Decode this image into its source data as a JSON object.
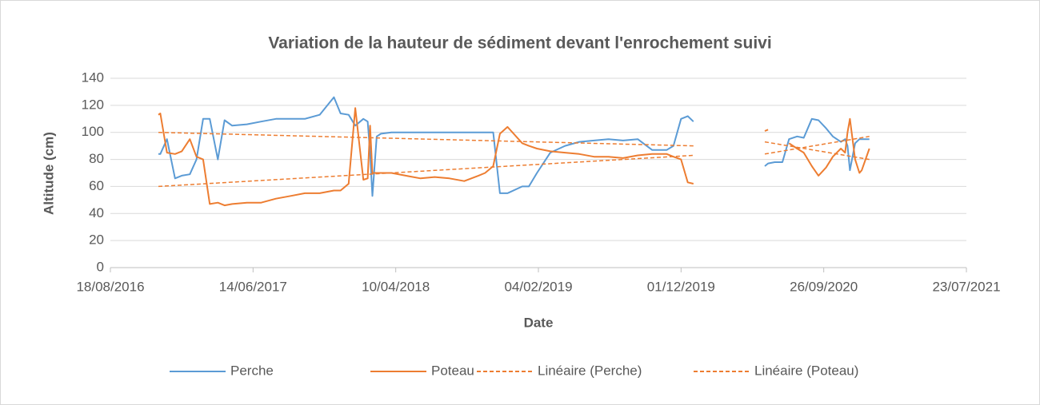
{
  "chart_data": {
    "type": "line",
    "title": "Variation de la hauteur de sédiment devant l'enrochement suivi",
    "x_label": "Date",
    "y_label": "Altitude (cm)",
    "xlim": [
      "2016-08-18",
      "2021-07-23"
    ],
    "xticks": [
      {
        "value": "2016-08-18",
        "label": "18/08/2016"
      },
      {
        "value": "2017-06-14",
        "label": "14/06/2017"
      },
      {
        "value": "2018-04-10",
        "label": "10/04/2018"
      },
      {
        "value": "2019-02-04",
        "label": "04/02/2019"
      },
      {
        "value": "2019-12-01",
        "label": "01/12/2019"
      },
      {
        "value": "2020-09-26",
        "label": "26/09/2020"
      },
      {
        "value": "2021-07-23",
        "label": "23/07/2021"
      }
    ],
    "ylim": [
      0,
      140
    ],
    "yticks": [
      0,
      20,
      40,
      60,
      80,
      100,
      120,
      140
    ],
    "grid": true,
    "legend": "bottom",
    "series": [
      {
        "name": "Perche",
        "color": "#5b9bd5",
        "dash": false,
        "x": [
          "2016-11-27",
          "2016-12-01",
          "2016-12-15",
          "2017-01-01",
          "2017-01-15",
          "2017-02-01",
          "2017-02-15",
          "2017-03-01",
          "2017-03-15",
          "2017-04-01",
          "2017-04-15",
          "2017-05-01",
          "2017-06-01",
          "2017-07-01",
          "2017-08-01",
          "2017-09-01",
          "2017-10-01",
          "2017-11-01",
          "2017-12-01",
          "2017-12-15",
          "2018-01-01",
          "2018-01-15",
          "2018-02-01",
          "2018-02-10",
          "2018-02-15",
          "2018-02-20",
          "2018-03-01",
          "2018-03-10",
          "2018-04-01",
          "2018-05-01",
          "2018-06-01",
          "2018-07-01",
          "2018-08-01",
          "2018-09-01",
          "2018-10-01",
          "2018-10-15",
          "2018-11-01",
          "2018-11-15",
          "2018-12-01",
          "2019-01-01",
          "2019-01-15",
          "2019-02-01",
          "2019-03-01",
          "2019-04-01",
          "2019-05-01",
          "2019-06-01",
          "2019-07-01",
          "2019-08-01",
          "2019-09-01",
          "2019-10-01",
          "2019-11-01",
          "2019-11-15",
          "2019-12-01",
          "2019-12-15",
          "2019-12-27",
          "2020-03-01",
          "2020-05-25",
          "2020-06-01",
          "2020-06-15",
          "2020-07-01",
          "2020-07-15",
          "2020-08-01",
          "2020-08-15",
          "2020-09-01",
          "2020-09-15",
          "2020-10-01",
          "2020-10-15",
          "2020-11-01",
          "2020-11-10",
          "2020-11-15",
          "2020-11-20",
          "2020-12-01",
          "2020-12-10",
          "2020-12-15",
          "2020-12-31"
        ],
        "values": [
          84,
          84,
          95,
          66,
          68,
          69,
          80,
          110,
          110,
          80,
          109,
          105,
          106,
          108,
          110,
          110,
          110,
          113,
          126,
          114,
          113,
          105,
          110,
          108,
          85,
          53,
          97,
          99,
          100,
          100,
          100,
          100,
          100,
          100,
          100,
          100,
          100,
          55,
          55,
          60,
          60,
          70,
          85,
          90,
          93,
          94,
          95,
          94,
          95,
          87,
          87,
          90,
          110,
          112,
          108,
          null,
          75,
          77,
          78,
          78,
          95,
          97,
          96,
          110,
          109,
          103,
          97,
          93,
          95,
          90,
          72,
          92,
          95,
          95,
          95
        ]
      },
      {
        "name": "Poteau",
        "color": "#ed7d31",
        "dash": false,
        "x": [
          "2016-11-27",
          "2016-12-01",
          "2016-12-15",
          "2017-01-01",
          "2017-01-15",
          "2017-02-01",
          "2017-02-15",
          "2017-03-01",
          "2017-03-15",
          "2017-04-01",
          "2017-04-15",
          "2017-05-01",
          "2017-06-01",
          "2017-07-01",
          "2017-08-01",
          "2017-09-01",
          "2017-10-01",
          "2017-11-01",
          "2017-12-01",
          "2017-12-15",
          "2018-01-01",
          "2018-01-15",
          "2018-02-01",
          "2018-02-10",
          "2018-02-15",
          "2018-02-20",
          "2018-03-01",
          "2018-03-10",
          "2018-04-01",
          "2018-05-01",
          "2018-06-01",
          "2018-07-01",
          "2018-08-01",
          "2018-09-01",
          "2018-10-01",
          "2018-10-15",
          "2018-11-01",
          "2018-11-15",
          "2018-12-01",
          "2019-01-01",
          "2019-01-15",
          "2019-02-01",
          "2019-03-01",
          "2019-04-01",
          "2019-05-01",
          "2019-06-01",
          "2019-07-01",
          "2019-08-01",
          "2019-09-01",
          "2019-10-01",
          "2019-11-01",
          "2019-11-15",
          "2019-12-01",
          "2019-12-15",
          "2019-12-27",
          "2020-03-01",
          "2020-05-25",
          "2020-06-01",
          "2020-06-15",
          "2020-07-01",
          "2020-07-15",
          "2020-08-01",
          "2020-08-15",
          "2020-09-01",
          "2020-09-15",
          "2020-10-01",
          "2020-10-15",
          "2020-11-01",
          "2020-11-10",
          "2020-11-15",
          "2020-11-20",
          "2020-12-01",
          "2020-12-10",
          "2020-12-15",
          "2020-12-31"
        ],
        "values": [
          113,
          114,
          85,
          84,
          86,
          95,
          82,
          80,
          47,
          48,
          46,
          47,
          48,
          48,
          51,
          53,
          55,
          55,
          57,
          57,
          62,
          118,
          65,
          66,
          105,
          70,
          70,
          70,
          70,
          68,
          66,
          67,
          66,
          64,
          68,
          70,
          75,
          99,
          104,
          92,
          90,
          88,
          86,
          85,
          84,
          82,
          82,
          81,
          83,
          84,
          84,
          82,
          80,
          63,
          62,
          null,
          101,
          102,
          null,
          null,
          92,
          88,
          85,
          75,
          68,
          74,
          82,
          88,
          85,
          100,
          110,
          80,
          70,
          72,
          88
        ]
      },
      {
        "name": "Linéaire (Perche)",
        "color": "#ed7d31",
        "dash": true,
        "x": [
          "2016-11-27",
          "2019-12-27",
          "2020-03-01",
          "2020-05-25",
          "2020-12-31"
        ],
        "values": [
          60,
          83,
          null,
          84,
          97
        ]
      },
      {
        "name": "Linéaire (Poteau)",
        "color": "#ed7d31",
        "dash": true,
        "x": [
          "2016-11-27",
          "2019-12-27",
          "2020-03-01",
          "2020-05-25",
          "2020-12-31"
        ],
        "values": [
          100,
          90,
          null,
          93,
          80
        ]
      }
    ]
  }
}
